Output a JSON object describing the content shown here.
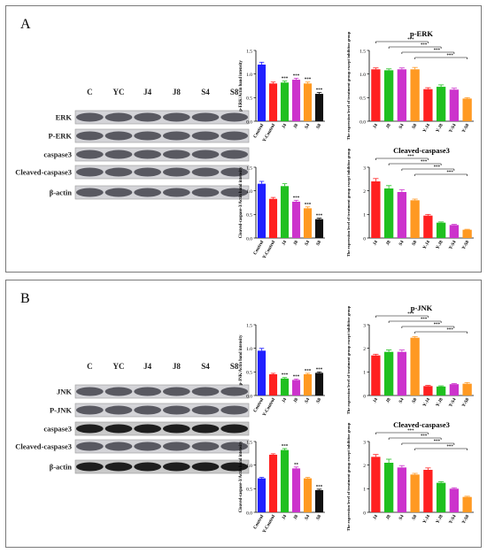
{
  "figure": {
    "panels": [
      {
        "id": "A",
        "letter": "A",
        "lanes": [
          "C",
          "YC",
          "J4",
          "J8",
          "S4",
          "S8"
        ],
        "blot_rows": [
          "ERK",
          "P-ERK",
          "caspase3",
          "Cleaved-caspase3",
          "β-actin"
        ],
        "blot_dark": [
          false,
          false,
          false,
          false,
          false
        ]
      },
      {
        "id": "B",
        "letter": "B",
        "lanes": [
          "C",
          "YC",
          "J4",
          "J8",
          "S4",
          "S8"
        ],
        "blot_rows": [
          "JNK",
          "P-JNK",
          "caspase3",
          "Cleaved-caspase3",
          "β-actin"
        ],
        "blot_dark": [
          false,
          false,
          true,
          false,
          true
        ]
      }
    ]
  },
  "chart_data": [
    {
      "panel": "A",
      "position": "top-left",
      "type": "bar",
      "categories": [
        "Control",
        "Y-Control",
        "J4",
        "J8",
        "S4",
        "S8"
      ],
      "values": [
        1.2,
        0.8,
        0.82,
        0.88,
        0.8,
        0.58
      ],
      "errors": [
        0.05,
        0.03,
        0.03,
        0.03,
        0.03,
        0.03
      ],
      "significance": [
        "",
        "",
        "***",
        "***",
        "***",
        "***"
      ],
      "colors": [
        "#2020ff",
        "#ff2020",
        "#20c020",
        "#cc33cc",
        "#ff9922",
        "#111111"
      ],
      "ylabel": "p-ERK/Actin band intensity",
      "ylim": [
        0.0,
        1.5
      ],
      "yticks": [
        0.0,
        0.5,
        1.0,
        1.5
      ],
      "tick_decimals": 1,
      "title": ""
    },
    {
      "panel": "A",
      "position": "top-right",
      "type": "bar",
      "categories": [
        "J4",
        "J8",
        "S4",
        "S8",
        "Y-J4",
        "Y-J8",
        "Y-S4",
        "Y-S8"
      ],
      "values": [
        1.1,
        1.08,
        1.1,
        1.1,
        0.68,
        0.73,
        0.67,
        0.48
      ],
      "errors": [
        0.03,
        0.03,
        0.03,
        0.04,
        0.03,
        0.04,
        0.03,
        0.02
      ],
      "colors": [
        "#ff2020",
        "#20c020",
        "#cc33cc",
        "#ff9922",
        "#ff2020",
        "#20c020",
        "#cc33cc",
        "#ff9922"
      ],
      "brackets": [
        {
          "from": 0,
          "to": 4,
          "label": "***"
        },
        {
          "from": 1,
          "to": 5,
          "label": "***"
        },
        {
          "from": 2,
          "to": 6,
          "label": "***"
        },
        {
          "from": 3,
          "to": 7,
          "label": "***"
        }
      ],
      "title": "p-ERK",
      "ylabel": "The expression level of treatment group except inhibitor group",
      "ylim": [
        0.0,
        1.5
      ],
      "yticks": [
        0.0,
        0.5,
        1.0,
        1.5
      ],
      "tick_decimals": 1
    },
    {
      "panel": "A",
      "position": "bottom-left",
      "type": "bar",
      "categories": [
        "Control",
        "Y-Control",
        "J4",
        "J8",
        "S4",
        "S8"
      ],
      "values": [
        1.15,
        0.83,
        1.1,
        0.77,
        0.63,
        0.4
      ],
      "errors": [
        0.05,
        0.03,
        0.05,
        0.03,
        0.03,
        0.02
      ],
      "significance": [
        "",
        "",
        "",
        "***",
        "***",
        "***"
      ],
      "colors": [
        "#2020ff",
        "#ff2020",
        "#20c020",
        "#cc33cc",
        "#ff9922",
        "#111111"
      ],
      "ylabel": "Cleaved-caspase-3/Actin band intensity",
      "ylim": [
        0.0,
        1.5
      ],
      "yticks": [
        0.0,
        0.5,
        1.0,
        1.5
      ],
      "tick_decimals": 1,
      "title": ""
    },
    {
      "panel": "A",
      "position": "bottom-right",
      "type": "bar",
      "categories": [
        "J4",
        "J8",
        "S4",
        "S8",
        "Y-J4",
        "Y-J8",
        "Y-S4",
        "Y-S8"
      ],
      "values": [
        2.4,
        2.1,
        1.95,
        1.6,
        0.95,
        0.65,
        0.55,
        0.35
      ],
      "errors": [
        0.12,
        0.12,
        0.1,
        0.05,
        0.05,
        0.03,
        0.03,
        0.02
      ],
      "colors": [
        "#ff2020",
        "#20c020",
        "#cc33cc",
        "#ff9922",
        "#ff2020",
        "#20c020",
        "#cc33cc",
        "#ff9922"
      ],
      "brackets": [
        {
          "from": 0,
          "to": 4,
          "label": "***"
        },
        {
          "from": 1,
          "to": 5,
          "label": "***"
        },
        {
          "from": 2,
          "to": 6,
          "label": "***"
        },
        {
          "from": 3,
          "to": 7,
          "label": "***"
        }
      ],
      "title": "Cleaved-caspase3",
      "ylabel": "The expression level of treatment group except inhibitor group",
      "ylim": [
        0,
        3
      ],
      "yticks": [
        0,
        1,
        2,
        3
      ],
      "tick_decimals": 0
    },
    {
      "panel": "B",
      "position": "top-left",
      "type": "bar",
      "categories": [
        "Control",
        "Y-Control",
        "J4",
        "J8",
        "S4",
        "S8"
      ],
      "values": [
        0.95,
        0.45,
        0.36,
        0.33,
        0.45,
        0.48
      ],
      "errors": [
        0.05,
        0.02,
        0.02,
        0.02,
        0.02,
        0.02
      ],
      "significance": [
        "",
        "",
        "***",
        "***",
        "***",
        "***"
      ],
      "colors": [
        "#2020ff",
        "#ff2020",
        "#20c020",
        "#cc33cc",
        "#ff9922",
        "#111111"
      ],
      "ylabel": "p-JNK/Actin band intensity",
      "ylim": [
        0.0,
        1.5
      ],
      "yticks": [
        0.0,
        0.5,
        1.0,
        1.5
      ],
      "tick_decimals": 1,
      "title": ""
    },
    {
      "panel": "B",
      "position": "top-right",
      "type": "bar",
      "categories": [
        "J4",
        "J8",
        "S4",
        "S8",
        "Y-J4",
        "Y-J8",
        "Y-S4",
        "Y-S8"
      ],
      "values": [
        1.7,
        1.85,
        1.85,
        2.45,
        0.4,
        0.38,
        0.48,
        0.5
      ],
      "errors": [
        0.05,
        0.08,
        0.08,
        0.05,
        0.03,
        0.03,
        0.03,
        0.05
      ],
      "colors": [
        "#ff2020",
        "#20c020",
        "#cc33cc",
        "#ff9922",
        "#ff2020",
        "#20c020",
        "#cc33cc",
        "#ff9922"
      ],
      "brackets": [
        {
          "from": 0,
          "to": 4,
          "label": "***"
        },
        {
          "from": 1,
          "to": 5,
          "label": "***"
        },
        {
          "from": 2,
          "to": 6,
          "label": "***"
        },
        {
          "from": 3,
          "to": 7,
          "label": "***"
        }
      ],
      "title": "p-JNK",
      "ylabel": "The expression level of treatment group except inhibitor group",
      "ylim": [
        0,
        3
      ],
      "yticks": [
        0,
        1,
        2,
        3
      ],
      "tick_decimals": 0
    },
    {
      "panel": "B",
      "position": "bottom-left",
      "type": "bar",
      "categories": [
        "Control",
        "Y-Control",
        "J4",
        "J8",
        "S4",
        "S8"
      ],
      "values": [
        0.72,
        1.22,
        1.32,
        0.93,
        0.72,
        0.47
      ],
      "errors": [
        0.02,
        0.02,
        0.03,
        0.03,
        0.02,
        0.02
      ],
      "significance": [
        "",
        "",
        "***",
        "**",
        "",
        "***"
      ],
      "colors": [
        "#2020ff",
        "#ff2020",
        "#20c020",
        "#cc33cc",
        "#ff9922",
        "#111111"
      ],
      "ylabel": "Cleaved-caspase-3/Actin band intensity",
      "ylim": [
        0.0,
        1.5
      ],
      "yticks": [
        0.0,
        0.5,
        1.0,
        1.5
      ],
      "tick_decimals": 1,
      "title": ""
    },
    {
      "panel": "B",
      "position": "bottom-right",
      "type": "bar",
      "categories": [
        "J4",
        "J8",
        "S4",
        "S8",
        "Y-J4",
        "Y-J8",
        "Y-S4",
        "Y-S8"
      ],
      "values": [
        2.35,
        2.1,
        1.9,
        1.6,
        1.8,
        1.25,
        1.0,
        0.65
      ],
      "errors": [
        0.1,
        0.15,
        0.08,
        0.05,
        0.08,
        0.05,
        0.04,
        0.03
      ],
      "colors": [
        "#ff2020",
        "#20c020",
        "#cc33cc",
        "#ff9922",
        "#ff2020",
        "#20c020",
        "#cc33cc",
        "#ff9922"
      ],
      "brackets": [
        {
          "from": 0,
          "to": 4,
          "label": "***"
        },
        {
          "from": 1,
          "to": 5,
          "label": "***"
        },
        {
          "from": 2,
          "to": 6,
          "label": "***"
        },
        {
          "from": 3,
          "to": 7,
          "label": "***"
        }
      ],
      "title": "Cleaved-caspase3",
      "ylabel": "The expression level of treatment group except inhibitor group",
      "ylim": [
        0,
        3
      ],
      "yticks": [
        0,
        1,
        2,
        3
      ],
      "tick_decimals": 0
    }
  ]
}
